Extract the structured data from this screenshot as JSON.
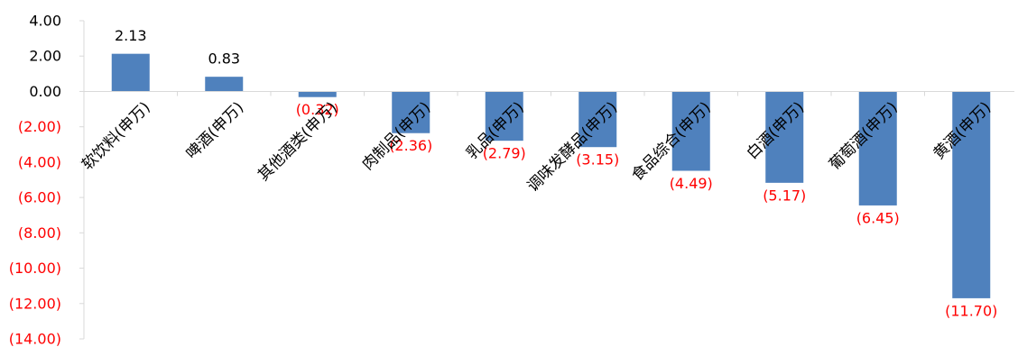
{
  "chart_data": {
    "type": "bar",
    "title": "",
    "xlabel": "",
    "ylabel": "",
    "ylim": [
      -14,
      4
    ],
    "y_ticks": [
      {
        "value": 4,
        "label": "4.00"
      },
      {
        "value": 2,
        "label": "2.00"
      },
      {
        "value": 0,
        "label": "0.00"
      },
      {
        "value": -2,
        "label": "(2.00)"
      },
      {
        "value": -4,
        "label": "(4.00)"
      },
      {
        "value": -6,
        "label": "(6.00)"
      },
      {
        "value": -8,
        "label": "(8.00)"
      },
      {
        "value": -10,
        "label": "(10.00)"
      },
      {
        "value": -12,
        "label": "(12.00)"
      },
      {
        "value": -14,
        "label": "(14.00)"
      }
    ],
    "categories": [
      "软饮料(申万)",
      "啤酒(申万)",
      "其他酒类(申万)",
      "肉制品(申万)",
      "乳品(申万)",
      "调味发酵品(申万)",
      "食品综合(申万)",
      "白酒(申万)",
      "葡萄酒(申万)",
      "黄酒(申万)"
    ],
    "values": [
      2.13,
      0.83,
      -0.32,
      -2.36,
      -2.79,
      -3.15,
      -4.49,
      -5.17,
      -6.45,
      -11.7
    ],
    "data_labels": [
      "2.13",
      "0.83",
      "(0.32)",
      "(2.36)",
      "(2.79)",
      "(3.15)",
      "(4.49)",
      "(5.17)",
      "(6.45)",
      "(11.70)"
    ],
    "grid": false,
    "legend": "none",
    "colors": {
      "bar": "#4F81BD",
      "positive_text": "#000000",
      "negative_text": "#FF0000",
      "axis": "#D9D9D9"
    }
  }
}
